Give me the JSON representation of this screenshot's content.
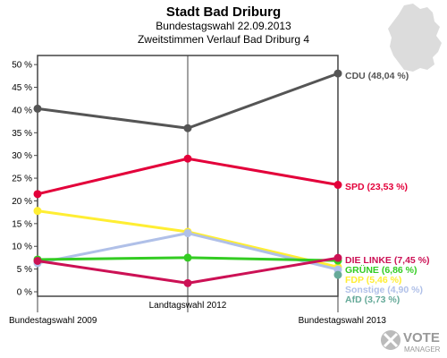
{
  "chart_data": {
    "type": "line",
    "title": "Stadt Bad Driburg",
    "subtitle_1": "Bundestagswahl 22.09.2013",
    "subtitle_2": "Zweitstimmen Verlauf Bad Driburg 4",
    "x": [
      "Bundestagswahl 2009",
      "Landtagswahl 2012",
      "Bundestagswahl 2013"
    ],
    "ylim": [
      0,
      52
    ],
    "yticks": [
      0,
      5,
      10,
      15,
      20,
      25,
      30,
      35,
      40,
      45,
      50
    ],
    "ytick_suffix": " %",
    "grid": false,
    "series": [
      {
        "name": "CDU",
        "color": "#555555",
        "values": [
          40.3,
          36.0,
          48.04
        ],
        "label": "CDU (48,04 %)"
      },
      {
        "name": "SPD",
        "color": "#e3003a",
        "values": [
          21.5,
          29.3,
          23.53
        ],
        "label": "SPD (23,53 %)"
      },
      {
        "name": "FDP",
        "color": "#ffee33",
        "values": [
          17.8,
          13.2,
          5.46
        ],
        "label": "FDP (5,46 %)"
      },
      {
        "name": "Sonstige",
        "color": "#b0c0e8",
        "values": [
          6.3,
          12.9,
          4.9
        ],
        "label": "Sonstige (4,90 %)"
      },
      {
        "name": "GRÜNE",
        "color": "#33cc22",
        "values": [
          7.1,
          7.5,
          6.86
        ],
        "label": "GRÜNE (6,86 %)"
      },
      {
        "name": "DIE LINKE",
        "color": "#cc1155",
        "values": [
          6.8,
          1.9,
          7.45
        ],
        "label": "DIE LINKE (7,45 %)"
      },
      {
        "name": "AfD",
        "color": "#66aa99",
        "values": [
          null,
          null,
          3.73
        ],
        "label": "AfD (3,73 %)"
      }
    ]
  },
  "branding": {
    "logo_text_1": "VOTE",
    "logo_text_2": "MANAGER"
  }
}
